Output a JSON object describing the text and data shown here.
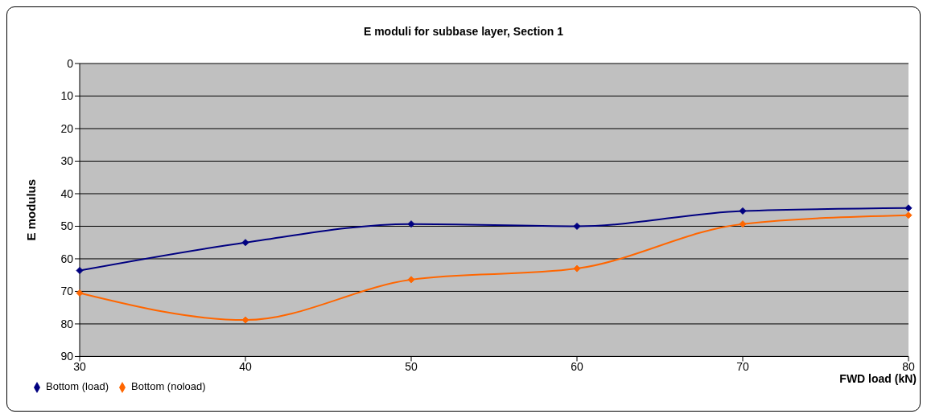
{
  "chart_data": {
    "type": "line",
    "title": "E moduli for subbase layer, Section 1",
    "xlabel": "FWD load (kN)",
    "ylabel": "E modulus",
    "categories": [
      "30",
      "40",
      "50",
      "60",
      "70",
      "80"
    ],
    "series": [
      {
        "name": "Bottom (load)",
        "color": "#000080",
        "values": [
          63.6,
          55,
          49.3,
          50,
          45.3,
          44.4
        ]
      },
      {
        "name": "Bottom (noload)",
        "color": "#ff6600",
        "values": [
          70.5,
          78.8,
          66.4,
          63,
          49.3,
          46.6
        ]
      }
    ],
    "ylim": [
      90,
      0
    ],
    "yticks": [
      0,
      10,
      20,
      30,
      40,
      50,
      60,
      70,
      80,
      90
    ],
    "grid": "y",
    "legend": "bottom left",
    "marker": "diamond",
    "line_style": "solid"
  }
}
